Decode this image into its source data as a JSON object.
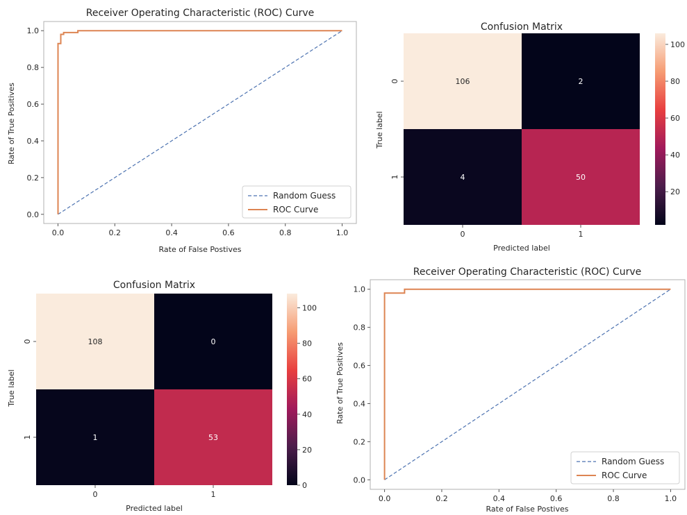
{
  "colors": {
    "random_guess": "#4c72b0",
    "roc_curve": "#dd8452",
    "cmap_stops": [
      "#03051a",
      "#4c1d4b",
      "#a11a5b",
      "#e83f3f",
      "#f69c73",
      "#faebdd"
    ]
  },
  "chart_data": [
    {
      "type": "line",
      "title": "Receiver Operating Characteristic (ROC) Curve",
      "xlabel": "Rate of False Postives",
      "ylabel": "Rate of True Positives",
      "xlim": [
        -0.05,
        1.05
      ],
      "ylim": [
        -0.05,
        1.05
      ],
      "xticks": [
        "0.0",
        "0.2",
        "0.4",
        "0.6",
        "0.8",
        "1.0"
      ],
      "yticks": [
        "0.0",
        "0.2",
        "0.4",
        "0.6",
        "0.8",
        "1.0"
      ],
      "grid": false,
      "legend_position": "bottom-right",
      "series": [
        {
          "name": "Random Guess",
          "style": "dashed",
          "x": [
            0,
            1
          ],
          "y": [
            0,
            1
          ]
        },
        {
          "name": "ROC Curve",
          "style": "solid",
          "x": [
            0,
            0,
            0,
            0.01,
            0.01,
            0.02,
            0.02,
            0.07,
            0.07,
            1.0
          ],
          "y": [
            0,
            0.92,
            0.93,
            0.93,
            0.98,
            0.98,
            0.99,
            0.99,
            1.0,
            1.0
          ]
        }
      ]
    },
    {
      "type": "heatmap",
      "title": "Confusion Matrix",
      "xlabel": "Predicted label",
      "ylabel": "True label",
      "x_categories": [
        "0",
        "1"
      ],
      "y_categories": [
        "0",
        "1"
      ],
      "values": [
        [
          106,
          2
        ],
        [
          4,
          50
        ]
      ],
      "colorbar_ticks": [
        20,
        40,
        60,
        80,
        100
      ],
      "vmin": 2,
      "vmax": 106
    },
    {
      "type": "heatmap",
      "title": "Confusion Matrix",
      "xlabel": "Predicted label",
      "ylabel": "True label",
      "x_categories": [
        "0",
        "1"
      ],
      "y_categories": [
        "0",
        "1"
      ],
      "values": [
        [
          108,
          0
        ],
        [
          1,
          53
        ]
      ],
      "colorbar_ticks": [
        0,
        20,
        40,
        60,
        80,
        100
      ],
      "vmin": 0,
      "vmax": 108
    },
    {
      "type": "line",
      "title": "Receiver Operating Characteristic (ROC) Curve",
      "xlabel": "Rate of False Postives",
      "ylabel": "Rate of True Positives",
      "xlim": [
        -0.05,
        1.05
      ],
      "ylim": [
        -0.05,
        1.05
      ],
      "xticks": [
        "0.0",
        "0.2",
        "0.4",
        "0.6",
        "0.8",
        "1.0"
      ],
      "yticks": [
        "0.0",
        "0.2",
        "0.4",
        "0.6",
        "0.8",
        "1.0"
      ],
      "grid": false,
      "legend_position": "bottom-right",
      "series": [
        {
          "name": "Random Guess",
          "style": "dashed",
          "x": [
            0,
            1
          ],
          "y": [
            0,
            1
          ]
        },
        {
          "name": "ROC Curve",
          "style": "solid",
          "x": [
            0,
            0,
            0,
            0.07,
            0.07,
            1.0
          ],
          "y": [
            0,
            0.98,
            0.98,
            0.98,
            1.0,
            1.0
          ]
        }
      ]
    }
  ]
}
